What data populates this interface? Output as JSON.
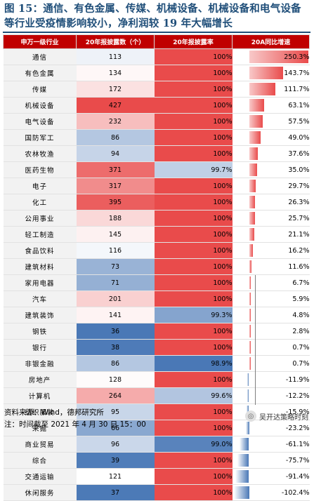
{
  "title": "图 15：通信、有色金属、传媒、机械设备、机械设备和电气设备等行业受疫情影响较小，净利润较 19 年大幅增长",
  "headers": [
    "申万一级行业",
    "20年报披露数（个）",
    "20年报披露率",
    "20A同比增速"
  ],
  "rows": [
    {
      "industry": "通信",
      "count": "113",
      "rate": "100%",
      "growth": "250.3%"
    },
    {
      "industry": "有色金属",
      "count": "134",
      "rate": "100%",
      "growth": "143.7%"
    },
    {
      "industry": "传媒",
      "count": "172",
      "rate": "100%",
      "growth": "111.7%"
    },
    {
      "industry": "机械设备",
      "count": "427",
      "rate": "100%",
      "growth": "63.1%"
    },
    {
      "industry": "电气设备",
      "count": "232",
      "rate": "100%",
      "growth": "57.5%"
    },
    {
      "industry": "国防军工",
      "count": "86",
      "rate": "100%",
      "growth": "49.0%"
    },
    {
      "industry": "农林牧渔",
      "count": "94",
      "rate": "100%",
      "growth": "37.6%"
    },
    {
      "industry": "医药生物",
      "count": "371",
      "rate": "99.7%",
      "growth": "35.0%"
    },
    {
      "industry": "电子",
      "count": "317",
      "rate": "100%",
      "growth": "29.7%"
    },
    {
      "industry": "化工",
      "count": "395",
      "rate": "100%",
      "growth": "26.3%"
    },
    {
      "industry": "公用事业",
      "count": "188",
      "rate": "100%",
      "growth": "25.7%"
    },
    {
      "industry": "轻工制造",
      "count": "145",
      "rate": "100%",
      "growth": "21.1%"
    },
    {
      "industry": "食品饮料",
      "count": "116",
      "rate": "100%",
      "growth": "16.2%"
    },
    {
      "industry": "建筑材料",
      "count": "73",
      "rate": "100%",
      "growth": "11.6%"
    },
    {
      "industry": "家用电器",
      "count": "71",
      "rate": "100%",
      "growth": "6.7%"
    },
    {
      "industry": "汽车",
      "count": "201",
      "rate": "100%",
      "growth": "5.9%"
    },
    {
      "industry": "建筑装饰",
      "count": "141",
      "rate": "99.3%",
      "growth": "4.8%"
    },
    {
      "industry": "钢铁",
      "count": "36",
      "rate": "100%",
      "growth": "2.8%"
    },
    {
      "industry": "银行",
      "count": "38",
      "rate": "100%",
      "growth": "0.7%"
    },
    {
      "industry": "非银金融",
      "count": "86",
      "rate": "98.9%",
      "growth": "0.7%"
    },
    {
      "industry": "房地产",
      "count": "128",
      "rate": "100%",
      "growth": "-11.9%"
    },
    {
      "industry": "计算机",
      "count": "264",
      "rate": "99.6%",
      "growth": "-12.2%"
    },
    {
      "industry": "纺织服装",
      "count": "95",
      "rate": "100%",
      "growth": "-15.9%"
    },
    {
      "industry": "采掘",
      "count": "66",
      "rate": "100%",
      "growth": "-23.2%"
    },
    {
      "industry": "商业贸易",
      "count": "96",
      "rate": "99.0%",
      "growth": "-61.1%"
    },
    {
      "industry": "综合",
      "count": "39",
      "rate": "100%",
      "growth": "-75.7%"
    },
    {
      "industry": "交通运输",
      "count": "121",
      "rate": "100%",
      "growth": "-91.4%"
    },
    {
      "industry": "休闲服务",
      "count": "37",
      "rate": "100%",
      "growth": "-102.4%"
    }
  ],
  "footer": {
    "source": "资料来源：Wind，德邦研究所",
    "note": "注：时间截至 2021 年 4 月 30 日 15：00"
  },
  "watermark": "吴开达策略时刻",
  "colors": {
    "title": "#1f4e79",
    "header_bg": "#c00000",
    "high": "#e94b4b",
    "mid": "#ffffff",
    "low": "#4a78b6"
  }
}
